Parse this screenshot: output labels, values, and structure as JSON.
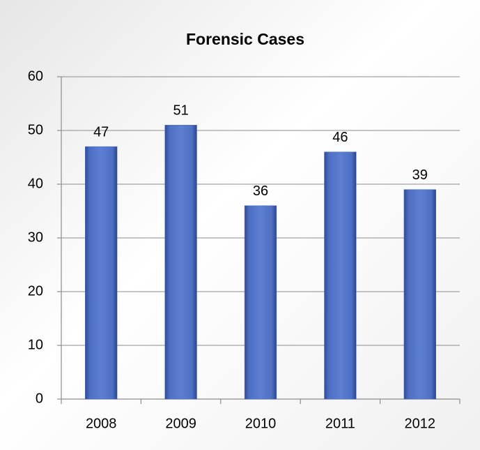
{
  "chart_data": {
    "type": "bar",
    "title": "Forensic Cases",
    "categories": [
      "2008",
      "2009",
      "2010",
      "2011",
      "2012"
    ],
    "values": [
      47,
      51,
      36,
      46,
      39
    ],
    "color": "#4a6cc0",
    "ylim": [
      0,
      60
    ],
    "yticks": [
      0,
      10,
      20,
      30,
      40,
      50,
      60
    ],
    "grid": true
  }
}
